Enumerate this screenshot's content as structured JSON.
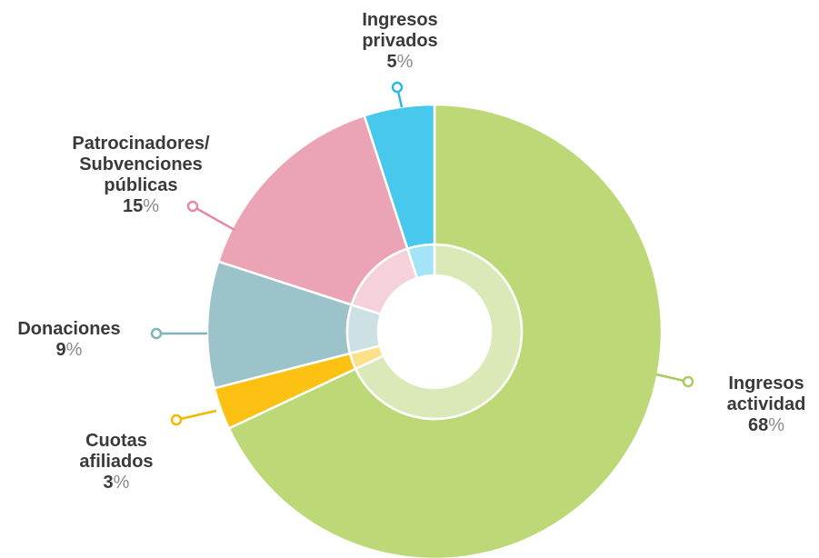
{
  "chart_data": {
    "type": "pie",
    "variant": "donut",
    "title": "",
    "slices": [
      {
        "label_lines": [
          "Ingresos",
          "actividad"
        ],
        "value": 68,
        "color": "#bdd977",
        "inner_color": "#dbe9b8",
        "leader_color": "#a9cc5e"
      },
      {
        "label_lines": [
          "Cuotas",
          "afiliados"
        ],
        "value": 3,
        "color": "#fdc114",
        "inner_color": "#fde08a",
        "leader_color": "#f5b800"
      },
      {
        "label_lines": [
          "Donaciones"
        ],
        "value": 9,
        "color": "#9bc3c9",
        "inner_color": "#cde1e4",
        "leader_color": "#7fb3ba"
      },
      {
        "label_lines": [
          "Patrocinadores/",
          "Subvenciones",
          "públicas"
        ],
        "value": 15,
        "color": "#eba4b6",
        "inner_color": "#f5d1da",
        "leader_color": "#e48aa3"
      },
      {
        "label_lines": [
          "Ingresos",
          "privados"
        ],
        "value": 5,
        "color": "#48c8ec",
        "inner_color": "#a3e4f6",
        "leader_color": "#2fb8df"
      }
    ],
    "percent_suffix": "%"
  }
}
